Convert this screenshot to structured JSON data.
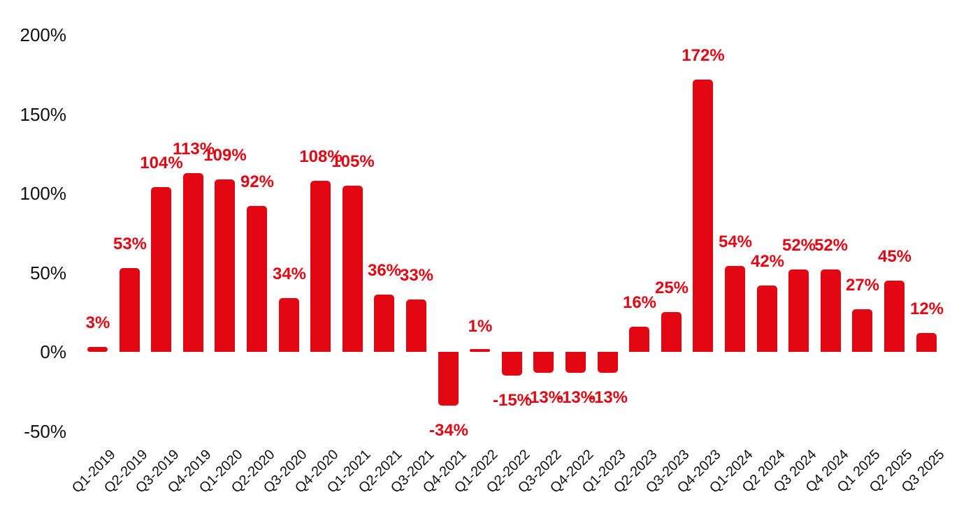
{
  "chart_data": {
    "type": "bar",
    "title": "",
    "xlabel": "",
    "ylabel": "",
    "categories": [
      "Q1-2019",
      "Q2-2019",
      "Q3-2019",
      "Q4-2019",
      "Q1-2020",
      "Q2-2020",
      "Q3-2020",
      "Q4-2020",
      "Q1-2021",
      "Q2-2021",
      "Q3-2021",
      "Q4-2021",
      "Q1-2022",
      "Q2-2022",
      "Q3-2022",
      "Q4-2022",
      "Q1-2023",
      "Q2-2023",
      "Q3-2023",
      "Q4-2023",
      "Q1-2024",
      "Q2 2024",
      "Q3 2024",
      "Q4 2024",
      "Q1 2025",
      "Q2 2025",
      "Q3 2025"
    ],
    "values": [
      3,
      53,
      104,
      113,
      109,
      92,
      34,
      108,
      105,
      36,
      33,
      -34,
      1,
      -15,
      -13,
      -13,
      -13,
      16,
      25,
      172,
      54,
      42,
      52,
      52,
      27,
      45,
      12
    ],
    "data_labels": [
      "3%",
      "53%",
      "104%",
      "113%",
      "109%",
      "92%",
      "34%",
      "108%",
      "105%",
      "36%",
      "33%",
      "-34%",
      "1%",
      "-15%",
      "-13%",
      "-13%",
      "-13%",
      "16%",
      "25%",
      "172%",
      "54%",
      "42%",
      "52%",
      "52%",
      "27%",
      "45%",
      "12%"
    ],
    "y_ticks": [
      {
        "value": 200,
        "label": "200%"
      },
      {
        "value": 150,
        "label": "150%"
      },
      {
        "value": 100,
        "label": "100%"
      },
      {
        "value": 50,
        "label": "50%"
      },
      {
        "value": 0,
        "label": "0%"
      },
      {
        "value": -50,
        "label": "-50%"
      }
    ],
    "ylim": [
      -50,
      200
    ],
    "grid": false,
    "legend": "none",
    "colors": {
      "bar": "#e30613",
      "data_label": "#e30613",
      "axis_text": "#111111",
      "background": "#ffffff"
    }
  }
}
